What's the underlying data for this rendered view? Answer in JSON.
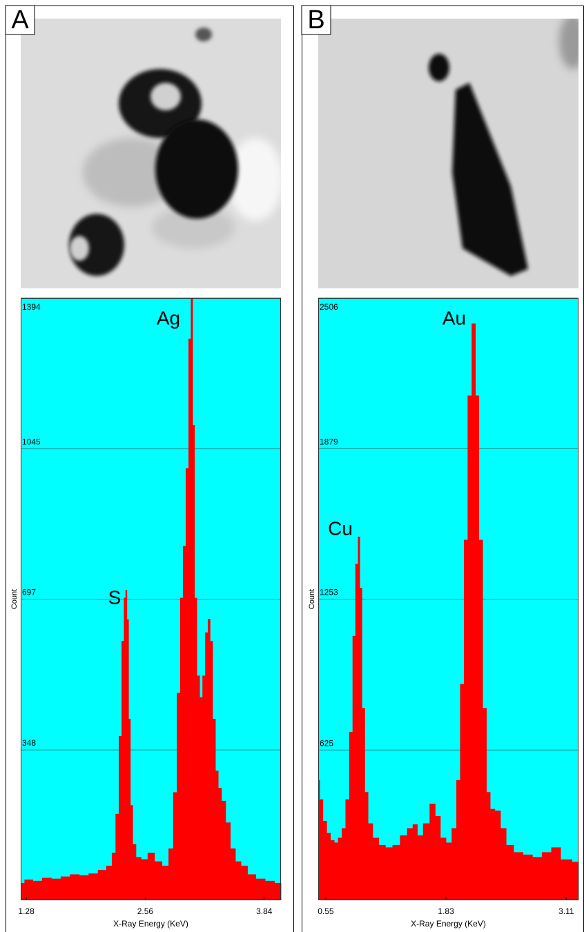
{
  "chart_data": [
    {
      "type": "area",
      "label": "A",
      "annotations": [
        "Ag",
        "S"
      ],
      "ylabel": "Count",
      "xlabel": "X-Ray Energy (KeV)",
      "color": "#ff0000",
      "background": "#00ffff",
      "grid": true,
      "x": [
        1.22,
        1.3,
        1.4,
        1.5,
        1.6,
        1.7,
        1.8,
        1.9,
        2.0,
        2.1,
        2.18,
        2.22,
        2.26,
        2.29,
        2.32,
        2.34,
        2.355,
        2.37,
        2.39,
        2.41,
        2.44,
        2.48,
        2.55,
        2.62,
        2.7,
        2.78,
        2.84,
        2.88,
        2.92,
        2.95,
        2.98,
        3.01,
        3.04,
        3.06,
        3.08,
        3.1,
        3.13,
        3.16,
        3.19,
        3.22,
        3.245,
        3.27,
        3.3,
        3.33,
        3.36,
        3.4,
        3.45,
        3.5,
        3.56,
        3.62,
        3.7,
        3.8,
        3.9,
        4.0
      ],
      "values": [
        40,
        48,
        45,
        52,
        50,
        55,
        60,
        58,
        62,
        70,
        80,
        110,
        200,
        380,
        600,
        700,
        718,
        650,
        420,
        220,
        130,
        100,
        95,
        110,
        90,
        80,
        120,
        250,
        480,
        700,
        820,
        1000,
        1300,
        1394,
        1100,
        700,
        520,
        470,
        520,
        620,
        651,
        600,
        420,
        300,
        260,
        230,
        180,
        120,
        90,
        80,
        60,
        50,
        45,
        40
      ],
      "xlim": [
        1.22,
        4.02
      ],
      "ylim": [
        0,
        1394
      ],
      "xticks": [
        1.28,
        2.56,
        3.84
      ],
      "yticks": [
        348,
        697,
        1045,
        1394
      ]
    },
    {
      "type": "area",
      "label": "B",
      "annotations": [
        "Au",
        "Cu"
      ],
      "ylabel": "Count",
      "xlabel": "X-Ray Energy (KeV)",
      "color": "#ff0000",
      "background": "#00ffff",
      "grid": true,
      "x": [
        0.47,
        0.5,
        0.54,
        0.58,
        0.62,
        0.66,
        0.7,
        0.74,
        0.78,
        0.82,
        0.85,
        0.88,
        0.904,
        0.92,
        0.95,
        0.98,
        1.02,
        1.08,
        1.15,
        1.22,
        1.3,
        1.38,
        1.45,
        1.5,
        1.55,
        1.62,
        1.69,
        1.74,
        1.8,
        1.86,
        1.92,
        1.96,
        2.0,
        2.04,
        2.08,
        2.126,
        2.16,
        2.2,
        2.24,
        2.28,
        2.32,
        2.38,
        2.44,
        2.5,
        2.6,
        2.7,
        2.8,
        2.9,
        3.0,
        3.1,
        3.24
      ],
      "values": [
        500,
        420,
        330,
        280,
        250,
        240,
        260,
        300,
        420,
        700,
        1100,
        1400,
        1513,
        1300,
        800,
        450,
        320,
        260,
        230,
        220,
        230,
        270,
        300,
        316,
        270,
        320,
        402,
        350,
        260,
        240,
        300,
        500,
        900,
        1500,
        2100,
        2400,
        2100,
        1500,
        800,
        450,
        380,
        373,
        300,
        230,
        200,
        190,
        180,
        200,
        220,
        170,
        160
      ],
      "xlim": [
        0.47,
        3.24
      ],
      "ylim": [
        0,
        2506
      ],
      "xticks": [
        0.55,
        1.83,
        3.11
      ],
      "yticks": [
        625,
        1253,
        1879,
        2506
      ]
    }
  ]
}
